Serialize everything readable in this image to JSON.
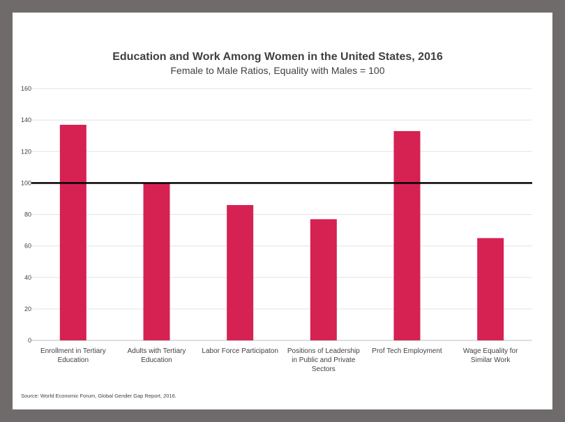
{
  "chart_data": {
    "type": "bar",
    "title": "Education and Work Among Women in the United States, 2016",
    "subtitle": "Female to Male Ratios, Equality with Males = 100",
    "categories": [
      [
        "Enrollment in Tertiary",
        "Education"
      ],
      [
        "Adults with Tertiary",
        "Education"
      ],
      [
        "Labor Force Participaton"
      ],
      [
        "Positions of Leadership",
        "in Public and Private",
        "Sectors"
      ],
      [
        "Prof Tech Employment"
      ],
      [
        "Wage Equality for",
        "Similar Work"
      ]
    ],
    "values": [
      137,
      100,
      86,
      77,
      133,
      65
    ],
    "ylim": [
      0,
      160
    ],
    "yticks": [
      0,
      20,
      40,
      60,
      80,
      100,
      120,
      140,
      160
    ],
    "reference_line": 100,
    "grid": true,
    "legend": "none",
    "xlabel": "",
    "ylabel": "",
    "bar_color": "#d52253",
    "reference_line_color": "#000000",
    "grid_color": "#e3e3e3"
  },
  "source": "Source:  World Economic Forum, Global Gender Gap Report, 2016."
}
